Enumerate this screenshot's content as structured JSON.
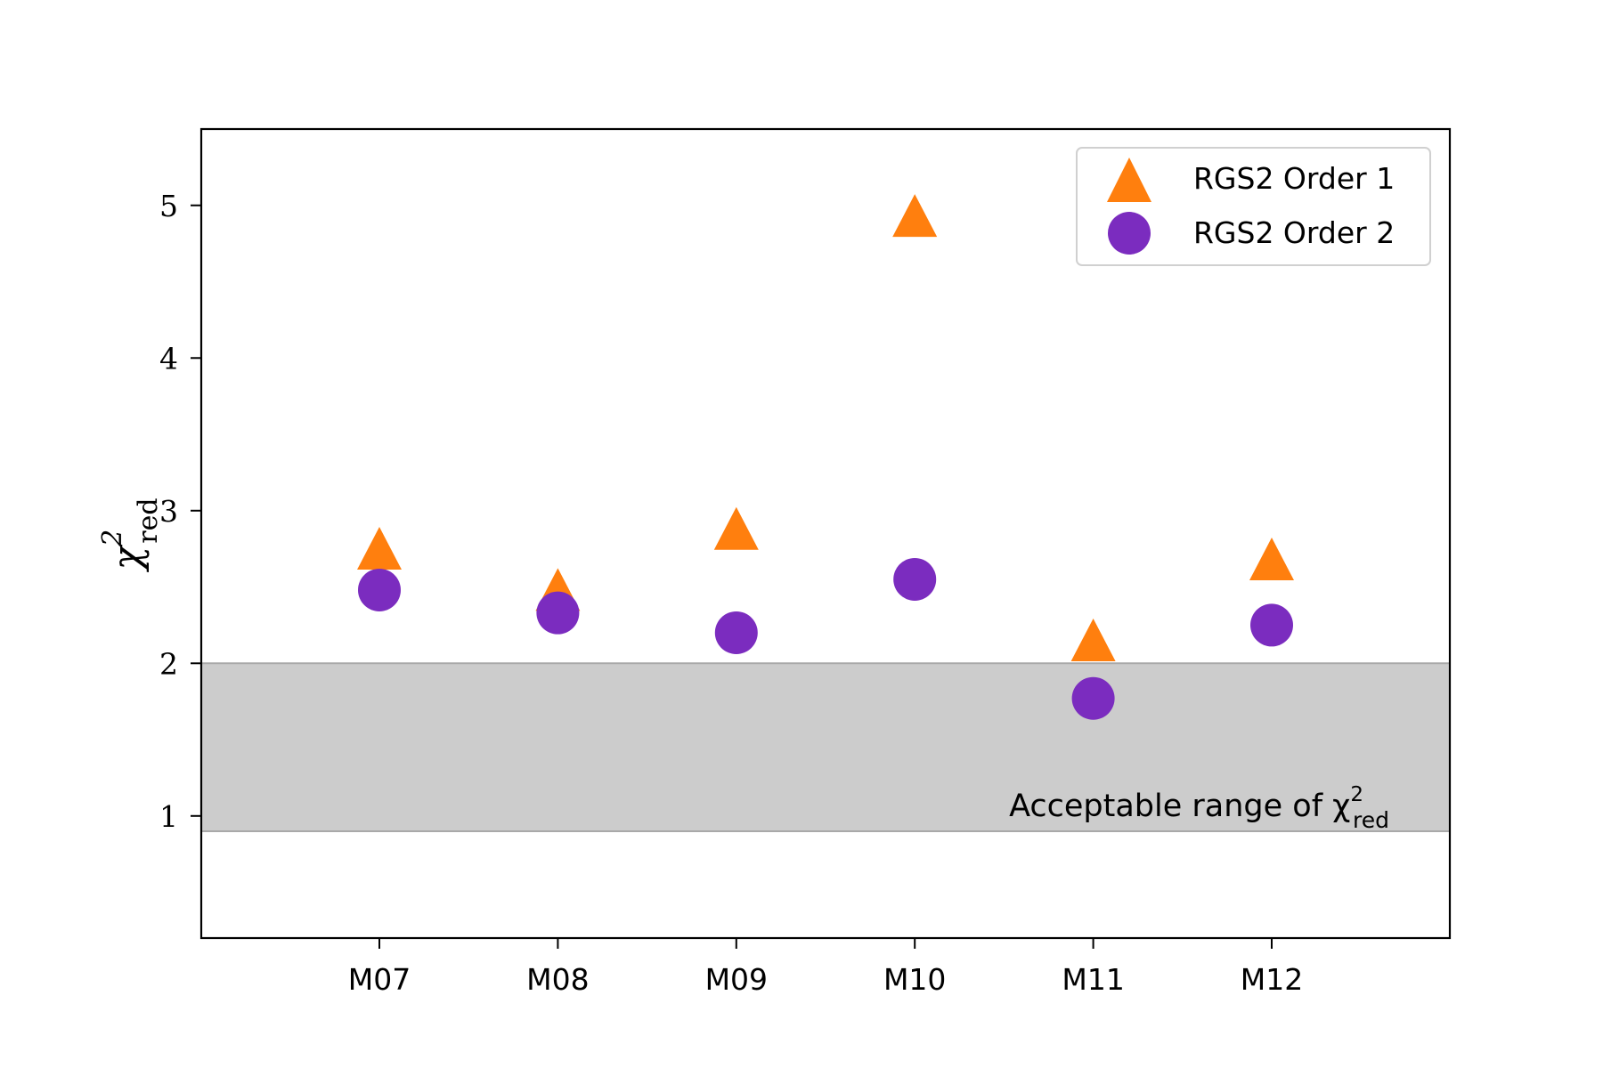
{
  "chart_data": {
    "type": "scatter",
    "categories": [
      "M07",
      "M08",
      "M09",
      "M10",
      "M11",
      "M12"
    ],
    "series": [
      {
        "name": "RGS2 Order 1",
        "marker": "triangle",
        "color": "#ff7f0e",
        "values": [
          2.72,
          2.45,
          2.85,
          4.9,
          2.12,
          2.65
        ]
      },
      {
        "name": "RGS2 Order 2",
        "marker": "circle",
        "color": "#7b2cbf",
        "values": [
          2.48,
          2.33,
          2.2,
          2.55,
          1.77,
          2.25
        ]
      }
    ],
    "ylabel": {
      "main": "χ",
      "sup": "2",
      "sub": "red"
    },
    "ylim": [
      0.2,
      5.5
    ],
    "yticks": [
      1,
      2,
      3,
      4,
      5
    ],
    "band": {
      "from": 0.9,
      "to": 2.0,
      "color": "#cccccc",
      "label": {
        "main": "Acceptable range of χ",
        "sup": "2",
        "sub": "red"
      }
    },
    "legend": "top-right",
    "grid": false
  }
}
